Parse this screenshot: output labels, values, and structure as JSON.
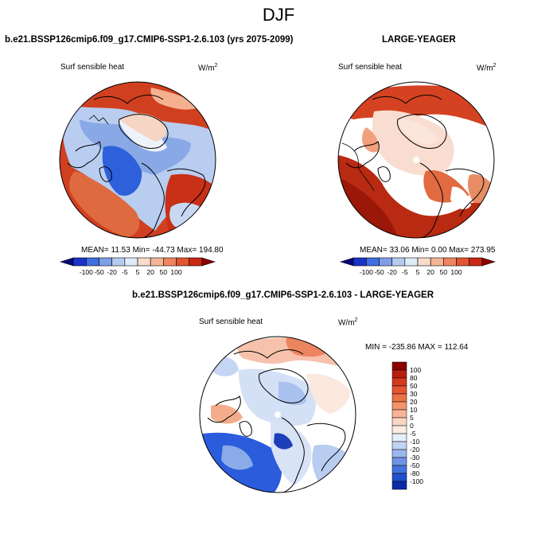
{
  "title": "DJF",
  "panels": [
    {
      "id": "case",
      "title": "b.e21.BSSP126cmip6.f09_g17.CMIP6-SSP1-2.6.103 (yrs 2075-2099)",
      "variable": "Surf sensible heat",
      "units_base": "W/m",
      "units_exp": "2",
      "stats": "MEAN=  11.53  Min= -44.73  Max= 194.80"
    },
    {
      "id": "obs",
      "title": "LARGE-YEAGER",
      "variable": "Surf sensible heat",
      "units_base": "W/m",
      "units_exp": "2",
      "stats": "MEAN=  33.06  Min=   0.00  Max= 273.95"
    },
    {
      "id": "diff",
      "title": "b.e21.BSSP126cmip6.f09_g17.CMIP6-SSP1-2.6.103 - LARGE-YEAGER",
      "variable": "Surf sensible heat",
      "units_base": "W/m",
      "units_exp": "2",
      "stats": "MIN = -235.86 MAX = 112.64"
    }
  ],
  "colorbar_horizontal": {
    "labels": [
      "-100",
      "-50",
      "-20",
      "-5",
      "5",
      "20",
      "50",
      "100"
    ],
    "colors": [
      "#08087a",
      "#1a32c8",
      "#3f6fe0",
      "#7f9fe8",
      "#b5cbf0",
      "#e0ebf8",
      "#f8dccc",
      "#f5b497",
      "#ef8460",
      "#e25530",
      "#c82814",
      "#8c0000"
    ]
  },
  "colorbar_vertical": {
    "labels": [
      "100",
      "80",
      "50",
      "30",
      "20",
      "10",
      "5",
      "0",
      "-5",
      "-10",
      "-20",
      "-30",
      "-50",
      "-80",
      "-100"
    ],
    "colors": [
      "#8c0000",
      "#b81e0c",
      "#d43a1c",
      "#e25530",
      "#ec7248",
      "#f39468",
      "#f6b597",
      "#f9d6c5",
      "#fbece4",
      "#e6eefa",
      "#c2d4f4",
      "#9ab7ee",
      "#6f93e6",
      "#4472dc",
      "#2050cc",
      "#0a2aa8"
    ]
  }
}
